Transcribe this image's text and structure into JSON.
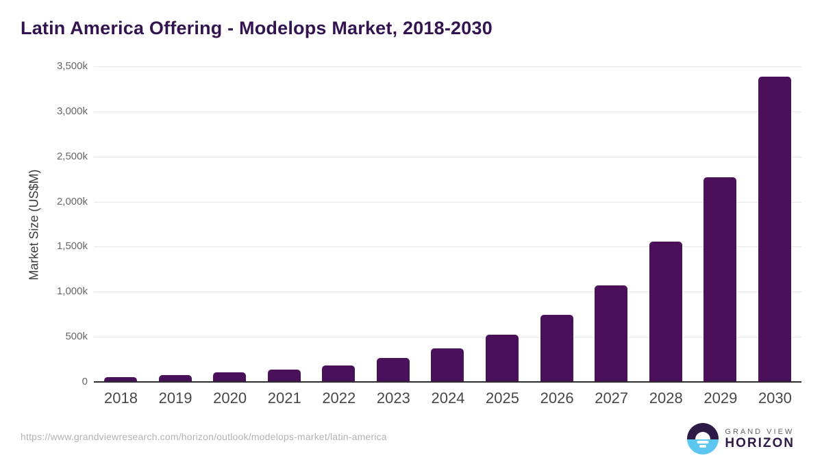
{
  "title": "Latin America Offering - Modelops Market, 2018-2030",
  "chart_data": {
    "type": "bar",
    "title": "Latin America Offering - Modelops Market, 2018-2030",
    "xlabel": "",
    "ylabel": "Market Size (US$M)",
    "categories": [
      "2018",
      "2019",
      "2020",
      "2021",
      "2022",
      "2023",
      "2024",
      "2025",
      "2026",
      "2027",
      "2028",
      "2029",
      "2030"
    ],
    "values": [
      53,
      76,
      103,
      136,
      182,
      265,
      371,
      523,
      742,
      1068,
      1553,
      2273,
      3386
    ],
    "value_unit": "k (US$M)",
    "ylim": [
      0,
      3500
    ],
    "ytick_interval": 500,
    "ytick_labels_top_down": [
      "3,500k",
      "3,000k",
      "2,500k",
      "2,000k",
      "1,500k",
      "1,000k",
      "500k",
      "0"
    ],
    "grid": true,
    "legend": "none",
    "bar_color": "#4a1059"
  },
  "colors": {
    "title": "#331450",
    "bar": "#4a1059",
    "gridline": "#e6e6e6",
    "axis_line": "#2d2d2d",
    "y_tick_text": "#666666",
    "x_tick_text": "#474747",
    "url_text": "#b2b2b6",
    "logo_purple": "#2e1a47",
    "logo_blue": "#5bc6f0"
  },
  "footer": {
    "source_url": "https://www.grandviewresearch.com/horizon/outlook/modelops-market/latin-america",
    "logo": {
      "top_text": "GRAND VIEW",
      "bottom_text": "HORIZON"
    }
  }
}
